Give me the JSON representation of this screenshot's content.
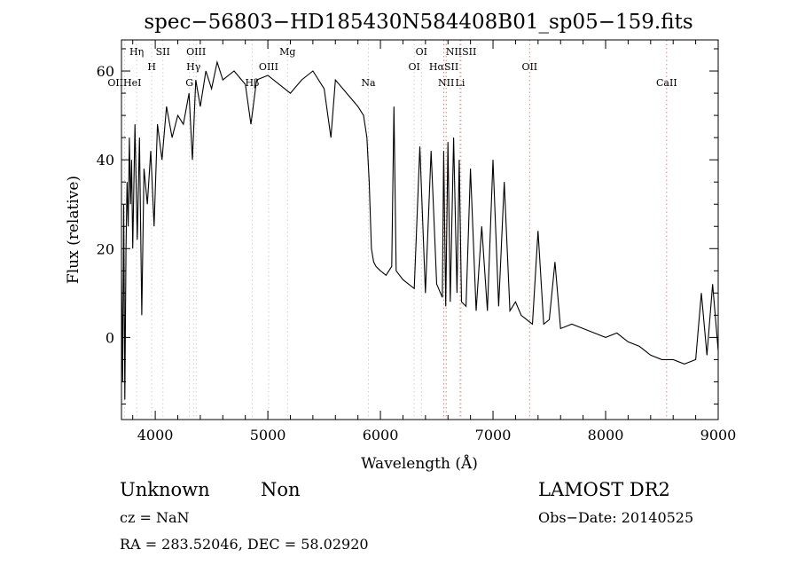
{
  "chart_data": {
    "type": "line",
    "title": "spec−56803−HD185430N584408B01_sp05−159.fits",
    "xlabel": "Wavelength (Å)",
    "ylabel": "Flux (relative)",
    "xlim": [
      3700,
      9000
    ],
    "ylim": [
      -18.5,
      67
    ],
    "x_ticks": [
      4000,
      5000,
      6000,
      7000,
      8000,
      9000
    ],
    "y_ticks": [
      0,
      20,
      40,
      60
    ],
    "grid": false,
    "series": [
      {
        "x": [
          3700,
          3710,
          3720,
          3730,
          3740,
          3750,
          3760,
          3770,
          3780,
          3790,
          3800,
          3820,
          3840,
          3860,
          3880,
          3900,
          3930,
          3960,
          3990,
          4020,
          4060,
          4100,
          4150,
          4200,
          4250,
          4300,
          4330,
          4360,
          4400,
          4450,
          4500,
          4550,
          4600,
          4700,
          4800,
          4850,
          4900,
          5000,
          5100,
          5150,
          5200,
          5300,
          5400,
          5500,
          5560,
          5600,
          5700,
          5800,
          5850,
          5880,
          5900,
          5920,
          5940,
          5960,
          6000,
          6050,
          6100,
          6120,
          6140,
          6200,
          6250,
          6300,
          6350,
          6400,
          6450,
          6500,
          6550,
          6562,
          6580,
          6600,
          6620,
          6650,
          6680,
          6700,
          6720,
          6760,
          6800,
          6850,
          6900,
          6950,
          7000,
          7050,
          7100,
          7150,
          7200,
          7250,
          7300,
          7350,
          7400,
          7450,
          7500,
          7550,
          7600,
          7700,
          7800,
          7900,
          8000,
          8100,
          8200,
          8300,
          8400,
          8500,
          8600,
          8700,
          8800,
          8850,
          8900,
          8950,
          9000
        ],
        "y": [
          15,
          -10,
          30,
          -14,
          20,
          35,
          25,
          45,
          30,
          40,
          20,
          48,
          22,
          45,
          5,
          38,
          30,
          42,
          25,
          48,
          40,
          52,
          45,
          50,
          48,
          55,
          40,
          58,
          52,
          60,
          56,
          62,
          58,
          60,
          57,
          48,
          58,
          59,
          57,
          56,
          55,
          58,
          60,
          56,
          45,
          58,
          55,
          52,
          50,
          45,
          35,
          20,
          17,
          16,
          15,
          14,
          16,
          52,
          15,
          13,
          12,
          11,
          43,
          10,
          42,
          12,
          9,
          42,
          7,
          44,
          8,
          45,
          10,
          40,
          8,
          7,
          38,
          6,
          25,
          6,
          40,
          7,
          35,
          6,
          8,
          5,
          4,
          3,
          24,
          3,
          4,
          17,
          2,
          3,
          2,
          1,
          0,
          1,
          -1,
          -2,
          -4,
          -5,
          -5,
          -6,
          -5,
          10,
          -4,
          12,
          -3
        ]
      }
    ],
    "lines": [
      {
        "label": "Hη",
        "wave": 3835,
        "color": "#d0d0d0",
        "row": 1
      },
      {
        "label": "SII",
        "wave": 4068,
        "color": "#d0d0d0",
        "row": 1
      },
      {
        "label": "OIII",
        "wave": 4363,
        "color": "#d0d0d0",
        "row": 1
      },
      {
        "label": "Mg",
        "wave": 5175,
        "color": "#d0d0d0",
        "row": 1
      },
      {
        "label": "OI",
        "wave": 6364,
        "color": "#d0d0d0",
        "row": 1
      },
      {
        "label": "NIISII",
        "wave": 6717,
        "color": "#d0d0d0",
        "row": 1
      },
      {
        "label": "H",
        "wave": 3969,
        "color": "#d0d0d0",
        "row": 2
      },
      {
        "label": "Hγ",
        "wave": 4340,
        "color": "#d0d0d0",
        "row": 2
      },
      {
        "label": "OIII",
        "wave": 5007,
        "color": "#d0d0d0",
        "row": 2
      },
      {
        "label": "OI",
        "wave": 6300,
        "color": "#d0d0d0",
        "row": 2
      },
      {
        "label": "HαSII",
        "wave": 6563,
        "color": "#e08080",
        "row": 2
      },
      {
        "label": "OII",
        "wave": 7325,
        "color": "#e08080",
        "row": 2
      },
      {
        "label": "OIIHeI",
        "wave": 3727,
        "color": "#d0d0d0",
        "row": 3
      },
      {
        "label": "G",
        "wave": 4304,
        "color": "#d0d0d0",
        "row": 3
      },
      {
        "label": "Hβ",
        "wave": 4861,
        "color": "#d0d0d0",
        "row": 3
      },
      {
        "label": "Na",
        "wave": 5893,
        "color": "#d0d0d0",
        "row": 3
      },
      {
        "label": "NII",
        "wave": 6584,
        "color": "#e08080",
        "row": 3
      },
      {
        "label": "Li",
        "wave": 6708,
        "color": "#e08080",
        "row": 3
      },
      {
        "label": "CaII",
        "wave": 8542,
        "color": "#e08080",
        "row": 3
      }
    ]
  },
  "info": {
    "class": "Unknown",
    "subclass": "Non",
    "cz": "cz = NaN",
    "coords": "RA = 283.52046, DEC =  58.02920",
    "survey": "LAMOST DR2",
    "obsdate": "Obs−Date: 20140525"
  }
}
